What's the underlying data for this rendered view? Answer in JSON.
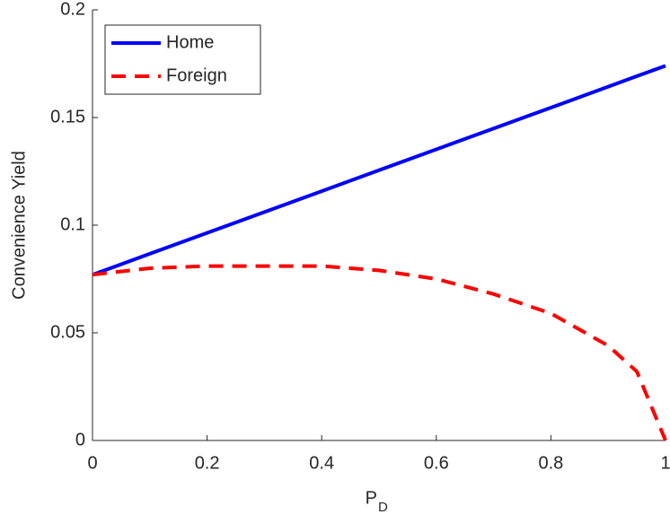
{
  "chart_data": {
    "type": "line",
    "ylabel": "Convenience Yield",
    "xlabel": "P",
    "xlabel_subscript": "D",
    "x": [
      0,
      0.1,
      0.2,
      0.3,
      0.4,
      0.5,
      0.6,
      0.7,
      0.8,
      0.9,
      0.95,
      1
    ],
    "series": [
      {
        "name": "Home",
        "color": "#0000ff",
        "dash": false,
        "values": [
          0.077,
          0.0867,
          0.0964,
          0.1061,
          0.1158,
          0.1255,
          0.1352,
          0.1449,
          0.1546,
          0.1643,
          0.1692,
          0.174
        ]
      },
      {
        "name": "Foreign",
        "color": "#ff0000",
        "dash": true,
        "values": [
          0.077,
          0.08,
          0.081,
          0.081,
          0.081,
          0.079,
          0.075,
          0.068,
          0.059,
          0.044,
          0.032,
          0
        ]
      }
    ],
    "xlim": [
      0,
      1
    ],
    "xticks": [
      0,
      0.2,
      0.4,
      0.6,
      0.8,
      1
    ],
    "ylim": [
      0,
      0.2
    ],
    "yticks": [
      0,
      0.05,
      0.1,
      0.15,
      0.2
    ],
    "reference_line": 0,
    "legend": "upper-left"
  }
}
